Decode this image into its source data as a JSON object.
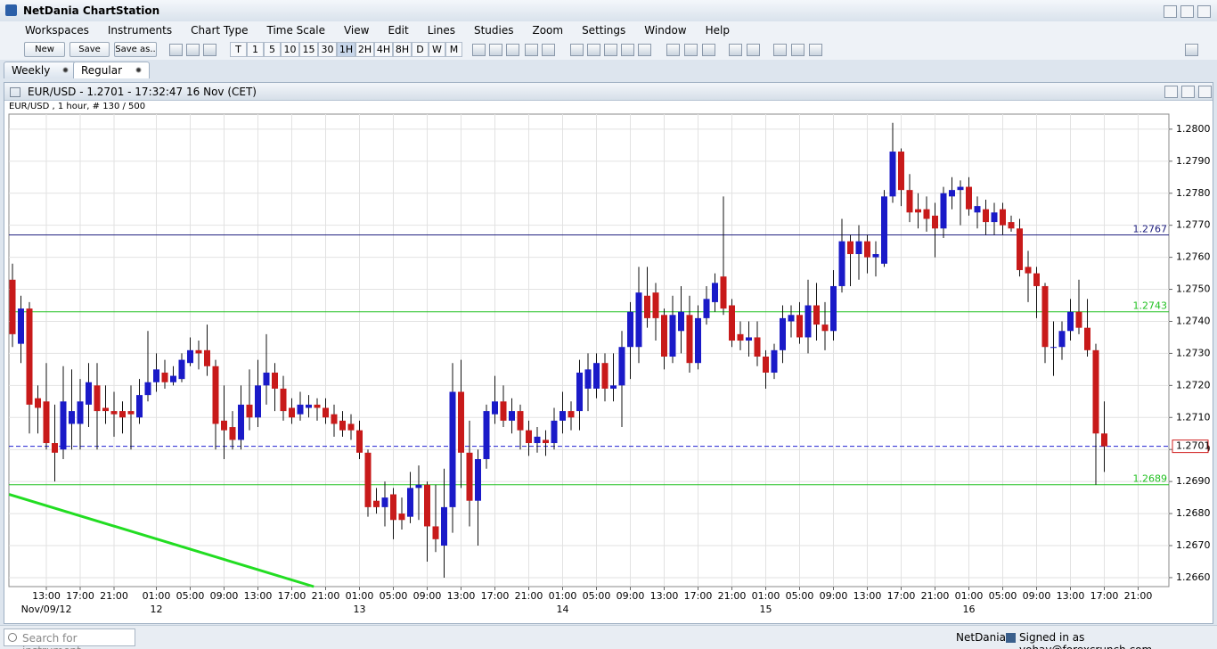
{
  "window": {
    "title": "NetDania ChartStation"
  },
  "menu": [
    "Workspaces",
    "Instruments",
    "Chart Type",
    "Time Scale",
    "View",
    "Edit",
    "Lines",
    "Studies",
    "Zoom",
    "Settings",
    "Window",
    "Help"
  ],
  "toolbar": {
    "buttons": [
      "New",
      "Save",
      "Save as.."
    ],
    "periods": [
      "T",
      "1",
      "5",
      "10",
      "15",
      "30",
      "1H",
      "2H",
      "4H",
      "8H",
      "D",
      "W",
      "M"
    ]
  },
  "tabs": [
    "Weekly",
    "Regular"
  ],
  "chart_window": {
    "title": "EUR/USD - 1.2701 - 17:32:47  16 Nov (CET)",
    "info": "EUR/USD , 1 hour, # 130 / 500"
  },
  "status": {
    "search_placeholder": "Search for instrument",
    "brand": "NetDania",
    "signed_in": "Signed in as yohay@forexcrunch.com"
  },
  "chart_data": {
    "type": "candlestick",
    "up_color": "#1a1ac8",
    "down_color": "#c81a1a",
    "grid": true,
    "ylim": [
      1.26572,
      1.28047
    ],
    "yticks": [
      {
        "value": 1.266,
        "label": "1.2660"
      },
      {
        "value": 1.267,
        "label": "1.2670"
      },
      {
        "value": 1.268,
        "label": "1.2680"
      },
      {
        "value": 1.269,
        "label": "1.2690"
      },
      {
        "value": 1.27,
        "label": "1.2700"
      },
      {
        "value": 1.271,
        "label": "1.2710"
      },
      {
        "value": 1.272,
        "label": "1.2720"
      },
      {
        "value": 1.273,
        "label": "1.2730"
      },
      {
        "value": 1.274,
        "label": "1.2740"
      },
      {
        "value": 1.275,
        "label": "1.2750"
      },
      {
        "value": 1.276,
        "label": "1.2760"
      },
      {
        "value": 1.277,
        "label": "1.2770"
      },
      {
        "value": 1.278,
        "label": "1.2780"
      },
      {
        "value": 1.279,
        "label": "1.2790"
      },
      {
        "value": 1.28,
        "label": "1.2800"
      }
    ],
    "categories": [
      null,
      null,
      null,
      null,
      "13:00",
      null,
      null,
      null,
      "17:00",
      null,
      null,
      null,
      "21:00",
      null,
      null,
      null,
      null,
      "01:00",
      null,
      null,
      null,
      "05:00",
      null,
      null,
      null,
      "09:00",
      null,
      null,
      null,
      "13:00",
      null,
      null,
      null,
      "17:00",
      null,
      null,
      null,
      "21:00",
      null,
      null,
      null,
      "01:00",
      null,
      null,
      null,
      "05:00",
      null,
      null,
      null,
      "09:00",
      null,
      null,
      null,
      "13:00",
      null,
      null,
      null,
      "17:00",
      null,
      null,
      null,
      "21:00",
      null,
      null,
      null,
      "01:00",
      null,
      null,
      null,
      "05:00",
      null,
      null,
      null,
      "09:00",
      null,
      null,
      null,
      "13:00",
      null,
      null,
      null,
      "17:00",
      null,
      null,
      null,
      "21:00",
      null,
      null,
      null,
      "01:00",
      null,
      null,
      null,
      "05:00",
      null,
      null,
      null,
      "09:00",
      null,
      null,
      null,
      "13:00",
      null,
      null,
      null,
      "17:00",
      null,
      null,
      null,
      "21:00",
      null,
      null,
      null,
      "01:00",
      null,
      null,
      null,
      "05:00",
      null,
      null,
      null,
      "09:00",
      null,
      null,
      null,
      "13:00",
      null,
      null,
      null,
      "17:00",
      null,
      null,
      null,
      "21:00"
    ],
    "date_labels": [
      null,
      null,
      null,
      null,
      "Nov/09/12",
      null,
      null,
      null,
      null,
      null,
      null,
      null,
      null,
      null,
      null,
      null,
      null,
      "12",
      null,
      null,
      null,
      null,
      null,
      null,
      null,
      null,
      null,
      null,
      null,
      null,
      null,
      null,
      null,
      null,
      null,
      null,
      null,
      null,
      null,
      null,
      null,
      "13",
      null,
      null,
      null,
      null,
      null,
      null,
      null,
      null,
      null,
      null,
      null,
      null,
      null,
      null,
      null,
      null,
      null,
      null,
      null,
      null,
      null,
      null,
      null,
      "14",
      null,
      null,
      null,
      null,
      null,
      null,
      null,
      null,
      null,
      null,
      null,
      null,
      null,
      null,
      null,
      null,
      null,
      null,
      null,
      null,
      null,
      null,
      null,
      "15",
      null,
      null,
      null,
      null,
      null,
      null,
      null,
      null,
      null,
      null,
      null,
      null,
      null,
      null,
      null,
      null,
      null,
      null,
      null,
      null,
      null,
      null,
      null,
      "16",
      null,
      null,
      null,
      null,
      null,
      null,
      null,
      null,
      null,
      null,
      null,
      null,
      null,
      null,
      null,
      null,
      null,
      null,
      null,
      null
    ],
    "open": [
      1.2753,
      1.2733,
      1.2744,
      1.2716,
      1.2715,
      1.2702,
      1.27,
      1.2708,
      1.2708,
      1.2714,
      1.272,
      1.2713,
      1.2712,
      1.2712,
      1.2712,
      1.271,
      1.2717,
      1.2721,
      1.2724,
      1.2721,
      1.2722,
      1.2727,
      1.2731,
      1.2731,
      1.2726,
      1.2709,
      1.2707,
      1.2703,
      1.2714,
      1.271,
      1.272,
      1.2724,
      1.2719,
      1.2713,
      1.2711,
      1.2713,
      1.2714,
      1.2713,
      1.2711,
      1.2709,
      1.2708,
      1.2706,
      1.2699,
      1.2684,
      1.2682,
      1.2686,
      1.268,
      1.2679,
      1.2688,
      1.2689,
      1.2676,
      1.267,
      1.2682,
      1.2718,
      1.2699,
      1.2684,
      1.2697,
      1.2711,
      1.2715,
      1.2709,
      1.2712,
      1.2706,
      1.2702,
      1.2703,
      1.2702,
      1.2709,
      1.2712,
      1.2712,
      1.2719,
      1.2719,
      1.2727,
      1.2719,
      1.272,
      1.2732,
      1.2732,
      1.2748,
      1.2749,
      1.2742,
      1.2729,
      1.2737,
      1.2742,
      1.2727,
      1.2741,
      1.2746,
      1.2754,
      1.2745,
      1.2736,
      1.2734,
      1.2735,
      1.2729,
      1.2724,
      1.2731,
      1.274,
      1.2742,
      1.2735,
      1.2745,
      1.2739,
      1.2737,
      1.2751,
      1.2765,
      1.2761,
      1.2765,
      1.276,
      1.2758,
      1.2779,
      1.2793,
      1.2781,
      1.2775,
      1.2775,
      1.2773,
      1.2769,
      1.2779,
      1.2781,
      1.2782,
      1.2774,
      1.2775,
      1.2771,
      1.2775,
      1.2771,
      1.2769,
      1.2757,
      1.2755,
      1.2751,
      1.2732,
      1.2732,
      1.2737,
      1.2743,
      1.2738,
      1.2731,
      1.2705,
      null,
      null,
      null,
      null
    ],
    "high": [
      1.2758,
      1.2748,
      1.2746,
      1.272,
      1.2727,
      1.2714,
      1.2726,
      1.2725,
      1.2722,
      1.2727,
      1.2727,
      1.272,
      1.2718,
      1.2715,
      1.272,
      1.2722,
      1.2737,
      1.273,
      1.2728,
      1.2726,
      1.273,
      1.2735,
      1.2734,
      1.2739,
      1.2728,
      1.272,
      1.2712,
      1.272,
      1.2725,
      1.2728,
      1.2736,
      1.2727,
      1.2723,
      1.2716,
      1.2718,
      1.2717,
      1.2716,
      1.2716,
      1.2714,
      1.2712,
      1.2711,
      1.2709,
      1.27,
      1.2688,
      1.269,
      1.2688,
      1.2685,
      1.2693,
      1.2695,
      1.269,
      1.2689,
      1.2694,
      1.2727,
      1.2728,
      1.2709,
      1.27,
      1.2714,
      1.2723,
      1.272,
      1.2716,
      1.2714,
      1.2709,
      1.2707,
      1.2706,
      1.2713,
      1.2718,
      1.2715,
      1.2728,
      1.273,
      1.273,
      1.273,
      1.273,
      1.2737,
      1.2746,
      1.2757,
      1.2757,
      1.2752,
      1.2744,
      1.2748,
      1.2751,
      1.2748,
      1.2745,
      1.2751,
      1.2755,
      1.2779,
      1.2747,
      1.274,
      1.274,
      1.274,
      1.2731,
      1.2733,
      1.2745,
      1.2745,
      1.2746,
      1.2753,
      1.2752,
      1.2746,
      1.2756,
      1.2772,
      1.2767,
      1.277,
      1.2767,
      1.2765,
      1.2781,
      1.2802,
      1.2794,
      1.2786,
      1.278,
      1.2779,
      1.2777,
      1.2782,
      1.2785,
      1.2784,
      1.2785,
      1.2779,
      1.2778,
      1.2777,
      1.2777,
      1.2773,
      1.2772,
      1.2762,
      1.2757,
      1.2752,
      1.274,
      1.274,
      1.2747,
      1.2753,
      1.2747,
      1.2733,
      1.2715,
      null,
      null,
      null,
      null
    ],
    "low": [
      1.2732,
      1.2727,
      1.2705,
      1.2705,
      1.27,
      1.269,
      1.2697,
      1.27,
      1.27,
      1.2707,
      1.27,
      1.2708,
      1.2704,
      1.2705,
      1.27,
      1.2708,
      1.2715,
      1.2718,
      1.2719,
      1.272,
      1.2721,
      1.2726,
      1.2725,
      1.2723,
      1.27,
      1.2697,
      1.27,
      1.27,
      1.2706,
      1.2707,
      1.2714,
      1.2712,
      1.2709,
      1.2708,
      1.2709,
      1.271,
      1.2709,
      1.2708,
      1.2704,
      1.2704,
      1.2703,
      1.2697,
      1.2679,
      1.268,
      1.2676,
      1.2672,
      1.2675,
      1.2677,
      1.2678,
      1.2665,
      1.2668,
      1.266,
      1.2674,
      1.2688,
      1.2676,
      1.267,
      1.2694,
      1.2708,
      1.2707,
      1.2705,
      1.27,
      1.2698,
      1.2699,
      1.2698,
      1.27,
      1.2705,
      1.2706,
      1.2706,
      1.2712,
      1.2716,
      1.2715,
      1.2715,
      1.2707,
      1.2722,
      1.2727,
      1.2738,
      1.2734,
      1.2725,
      1.2727,
      1.273,
      1.2724,
      1.2725,
      1.2739,
      1.2743,
      1.2742,
      1.2732,
      1.2731,
      1.2729,
      1.2726,
      1.2719,
      1.2722,
      1.2727,
      1.2735,
      1.2733,
      1.273,
      1.2734,
      1.2731,
      1.2734,
      1.2749,
      1.2751,
      1.2753,
      1.2755,
      1.2754,
      1.2757,
      1.2777,
      1.2776,
      1.2771,
      1.2769,
      1.2768,
      1.276,
      1.2766,
      1.2775,
      1.277,
      1.2773,
      1.2769,
      1.2767,
      1.2767,
      1.2767,
      1.2768,
      1.2754,
      1.2746,
      1.2741,
      1.2727,
      1.2723,
      1.2728,
      1.2734,
      1.2736,
      1.2729,
      1.2689,
      1.2693,
      null,
      null,
      null,
      null
    ],
    "close": [
      1.2736,
      1.2744,
      1.2714,
      1.2713,
      1.2702,
      1.2699,
      1.2715,
      1.2712,
      1.2715,
      1.2721,
      1.2712,
      1.2712,
      1.2711,
      1.271,
      1.2711,
      1.2717,
      1.2721,
      1.2725,
      1.2721,
      1.2723,
      1.2728,
      1.2731,
      1.273,
      1.2726,
      1.2708,
      1.2706,
      1.2703,
      1.2714,
      1.271,
      1.272,
      1.2724,
      1.2719,
      1.2712,
      1.271,
      1.2714,
      1.2714,
      1.2713,
      1.271,
      1.2708,
      1.2706,
      1.2706,
      1.2699,
      1.2682,
      1.2682,
      1.2685,
      1.2678,
      1.2678,
      1.2688,
      1.2689,
      1.2676,
      1.2672,
      1.2682,
      1.2718,
      1.2699,
      1.2684,
      1.2697,
      1.2712,
      1.2715,
      1.2709,
      1.2712,
      1.2706,
      1.2702,
      1.2704,
      1.2702,
      1.2709,
      1.2712,
      1.271,
      1.2724,
      1.2725,
      1.2727,
      1.2719,
      1.272,
      1.2732,
      1.2743,
      1.2749,
      1.2741,
      1.2741,
      1.2729,
      1.2742,
      1.2743,
      1.2727,
      1.2741,
      1.2747,
      1.2752,
      1.2744,
      1.2734,
      1.2734,
      1.2735,
      1.2729,
      1.2724,
      1.2731,
      1.2741,
      1.2742,
      1.2735,
      1.2745,
      1.2739,
      1.2737,
      1.2751,
      1.2765,
      1.2761,
      1.2765,
      1.276,
      1.2761,
      1.2779,
      1.2793,
      1.2781,
      1.2774,
      1.2774,
      1.2772,
      1.2769,
      1.278,
      1.2781,
      1.2782,
      1.2775,
      1.2776,
      1.2771,
      1.2774,
      1.277,
      1.2769,
      1.2756,
      1.2755,
      1.2751,
      1.2732,
      1.2732,
      1.2737,
      1.2743,
      1.2738,
      1.2731,
      1.2705,
      1.2701,
      null,
      null,
      null,
      null
    ],
    "levels": [
      {
        "value": 1.2767,
        "color": "#202080"
      },
      {
        "value": 1.2743,
        "color": "#20c020"
      },
      {
        "value": 1.2689,
        "color": "#20c020"
      },
      {
        "value": 1.2701,
        "color": "#2020d0",
        "style": "dashed"
      }
    ],
    "trend_line": {
      "x": [
        -0.4,
        35.6
      ],
      "values": [
        1.2686,
        1.26572
      ],
      "color": "#22dd22"
    }
  }
}
